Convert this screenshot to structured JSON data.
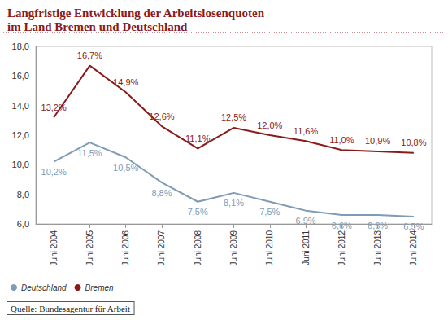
{
  "chart_data": {
    "type": "line",
    "title": "Langfristige Entwicklung der Arbeitslosenquoten\nim Land Bremen und Deutschland",
    "source": "Quelle: Bundesagentur für Arbeit",
    "categories": [
      "Juni 2004",
      "Juni 2005",
      "Juni 2006",
      "Juni 2007",
      "Juni 2008",
      "Juni 2009",
      "Juni 2010",
      "Juni 2011",
      "Juni 2012",
      "Juni 2013",
      "Juni 2014"
    ],
    "series": [
      {
        "name": "Deutschland",
        "color": "#7f9bb5",
        "values": [
          10.2,
          11.5,
          10.5,
          8.8,
          7.5,
          8.1,
          7.5,
          6.9,
          6.6,
          6.6,
          6.5
        ],
        "value_labels": [
          "10,2%",
          "11,5%",
          "10,5%",
          "8,8%",
          "7,5%",
          "8,1%",
          "7,5%",
          "6,9%",
          "6,6%",
          "6,6%",
          "6,5%"
        ]
      },
      {
        "name": "Bremen",
        "color": "#8b1a1a",
        "values": [
          13.2,
          16.7,
          14.9,
          12.6,
          11.1,
          12.5,
          12.0,
          11.6,
          11.0,
          10.9,
          10.8
        ],
        "value_labels": [
          "13,2%",
          "16,7%",
          "14,9%",
          "12,6%",
          "11,1%",
          "12,5%",
          "12,0%",
          "11,6%",
          "11,0%",
          "10,9%",
          "10,8%"
        ]
      }
    ],
    "ylim": [
      6,
      18
    ],
    "yticks": [
      {
        "value": 6,
        "label": "6,0"
      },
      {
        "value": 8,
        "label": "8,0"
      },
      {
        "value": 10,
        "label": "10,0"
      },
      {
        "value": 12,
        "label": "12,0"
      },
      {
        "value": 14,
        "label": "14,0"
      },
      {
        "value": 16,
        "label": "16,0"
      },
      {
        "value": 18,
        "label": "18,0"
      }
    ],
    "grid": false,
    "legend": "lower left",
    "data_labels": true
  }
}
